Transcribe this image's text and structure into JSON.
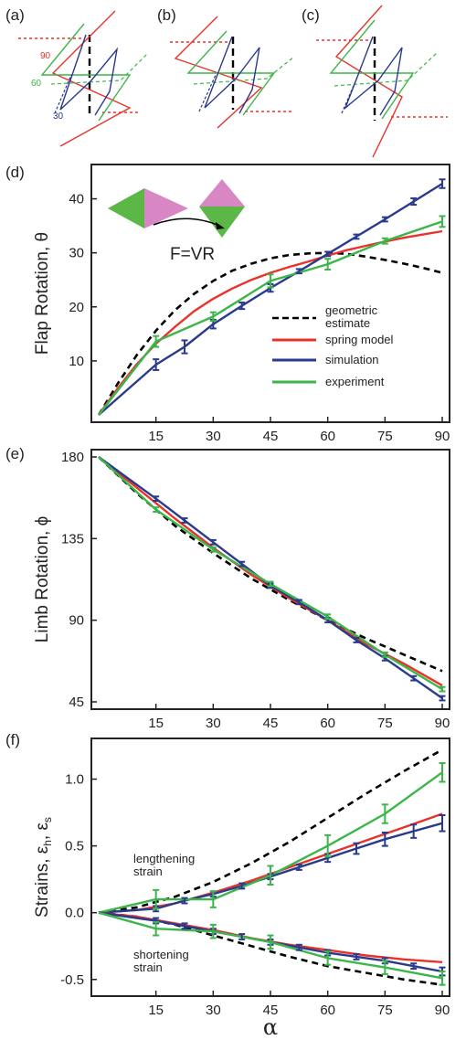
{
  "colors": {
    "geometric": "#000000",
    "spring": "#e8322a",
    "simulation": "#2a3a8c",
    "experiment": "#3cb54a",
    "pink": "#d987c4",
    "green": "#5cb846"
  },
  "panels_top": [
    {
      "label": "(a)",
      "angle_labels": [
        "90",
        "60",
        "30"
      ]
    },
    {
      "label": "(b)"
    },
    {
      "label": "(c)"
    }
  ],
  "chart_data": [
    {
      "type": "line",
      "panel": "(d)",
      "ylabel": "Flap Rotation, θ",
      "xlabel": "",
      "xlim": [
        0,
        90
      ],
      "ylim": [
        0,
        45
      ],
      "xticks": [
        15,
        30,
        45,
        60,
        75,
        90
      ],
      "yticks": [
        10,
        20,
        30,
        40
      ],
      "legend_position": "right",
      "inset_equation": "F=VR",
      "series": [
        {
          "name": "geometric\nestimate",
          "name_lines": [
            "geometric",
            "estimate"
          ],
          "style": "dashed",
          "color": "#000000",
          "x": [
            0,
            5,
            10,
            15,
            20,
            25,
            30,
            35,
            40,
            45,
            50,
            55,
            60,
            65,
            70,
            75,
            80,
            85,
            90
          ],
          "y": [
            0,
            5.8,
            11.1,
            15.6,
            19.4,
            22.4,
            24.8,
            26.7,
            28.0,
            29.0,
            29.6,
            29.9,
            30.0,
            29.8,
            29.3,
            28.7,
            28.0,
            27.2,
            26.3
          ]
        },
        {
          "name": "spring model",
          "style": "solid",
          "color": "#e8322a",
          "x": [
            0,
            5,
            10,
            15,
            20,
            25,
            30,
            35,
            40,
            45,
            50,
            55,
            60,
            65,
            70,
            75,
            80,
            85,
            90
          ],
          "y": [
            0,
            4.9,
            9.4,
            13.2,
            16.3,
            19.2,
            21.5,
            23.4,
            25.0,
            26.3,
            27.4,
            28.4,
            29.5,
            30.5,
            31.3,
            32.1,
            32.8,
            33.4,
            34.0
          ]
        },
        {
          "name": "simulation",
          "style": "solid",
          "color": "#2a3a8c",
          "x": [
            0,
            15,
            22.5,
            30,
            37.5,
            45,
            52.5,
            60,
            67.5,
            75,
            82.5,
            90
          ],
          "y": [
            0,
            9.3,
            12.6,
            16.8,
            20.2,
            23.5,
            26.6,
            29.8,
            33.0,
            36.2,
            39.5,
            42.8
          ],
          "err": [
            0,
            1.0,
            1.2,
            0.8,
            0.6,
            0.7,
            0.4,
            0.4,
            0.4,
            0.4,
            0.6,
            0.8
          ]
        },
        {
          "name": "experiment",
          "style": "solid",
          "color": "#3cb54a",
          "x": [
            0,
            15,
            30,
            45,
            60,
            75,
            90
          ],
          "y": [
            0,
            13.6,
            18.2,
            24.8,
            27.9,
            32.2,
            35.8
          ],
          "err": [
            0,
            1.0,
            0.8,
            1.2,
            1.0,
            0.5,
            1.0
          ]
        }
      ]
    },
    {
      "type": "line",
      "panel": "(e)",
      "ylabel": "Limb Rotation, ϕ",
      "xlabel": "",
      "xlim": [
        0,
        90
      ],
      "ylim": [
        45,
        180
      ],
      "xticks": [
        15,
        30,
        45,
        60,
        75,
        90
      ],
      "yticks": [
        45,
        90,
        135,
        180
      ],
      "series": [
        {
          "name": "geometric estimate",
          "style": "dashed",
          "color": "#000000",
          "x": [
            0,
            10,
            20,
            30,
            40,
            50,
            60,
            70,
            80,
            90
          ],
          "y": [
            180,
            160,
            142,
            127,
            113,
            101,
            90,
            80,
            71,
            62
          ]
        },
        {
          "name": "spring model",
          "style": "solid",
          "color": "#e8322a",
          "x": [
            0,
            10,
            20,
            30,
            40,
            50,
            60,
            70,
            80,
            90
          ],
          "y": [
            180,
            163,
            146,
            130,
            115,
            102,
            90,
            77,
            66,
            54
          ]
        },
        {
          "name": "simulation",
          "style": "solid",
          "color": "#2a3a8c",
          "x": [
            0,
            15,
            22.5,
            30,
            37.5,
            45,
            52.5,
            60,
            67.5,
            75,
            82.5,
            90
          ],
          "y": [
            180,
            157,
            145,
            133,
            121,
            109,
            100,
            90,
            79,
            69,
            58,
            47
          ],
          "err": [
            0,
            1.2,
            1.2,
            1.2,
            1.2,
            1.2,
            1.2,
            1.2,
            1.2,
            1.2,
            1.2,
            1.2
          ]
        },
        {
          "name": "experiment",
          "style": "solid",
          "color": "#3cb54a",
          "x": [
            0,
            15,
            30,
            45,
            60,
            75,
            90
          ],
          "y": [
            180,
            151,
            129,
            110,
            92,
            71,
            52
          ],
          "err": [
            0,
            1.2,
            1.2,
            1.2,
            1.2,
            1.2,
            1.2
          ]
        }
      ]
    },
    {
      "type": "line",
      "panel": "(f)",
      "ylabel": "Strains, ε",
      "ylabel_subs": [
        "h",
        "s"
      ],
      "xlabel": "α",
      "xlim": [
        0,
        90
      ],
      "ylim": [
        -0.57,
        1.25
      ],
      "xticks": [
        15,
        30,
        45,
        60,
        75,
        90
      ],
      "yticks": [
        -0.5,
        0.0,
        0.5,
        1.0
      ],
      "ytick_labels": [
        "-0.5",
        "0.0",
        "0.5",
        "1.0"
      ],
      "annotations": [
        {
          "lines": [
            "lengthening",
            "strain"
          ],
          "x": 8,
          "y": 0.55
        },
        {
          "lines": [
            "shortening",
            "strain"
          ],
          "x": 8,
          "y": -0.18
        }
      ],
      "series": [
        {
          "name": "geometric estimate (lengthening)",
          "style": "dashed",
          "color": "#000000",
          "x": [
            0,
            10,
            20,
            30,
            40,
            50,
            60,
            70,
            80,
            90
          ],
          "y": [
            0,
            0.04,
            0.12,
            0.23,
            0.37,
            0.53,
            0.71,
            0.89,
            1.06,
            1.22
          ]
        },
        {
          "name": "spring model (lengthening)",
          "style": "solid",
          "color": "#e8322a",
          "x": [
            0,
            10,
            20,
            30,
            40,
            50,
            60,
            70,
            80,
            90
          ],
          "y": [
            0,
            0.02,
            0.07,
            0.15,
            0.24,
            0.34,
            0.44,
            0.54,
            0.64,
            0.74
          ]
        },
        {
          "name": "simulation (lengthening)",
          "style": "solid",
          "color": "#2a3a8c",
          "x": [
            0,
            15,
            22.5,
            30,
            37.5,
            45,
            52.5,
            60,
            67.5,
            75,
            82.5,
            90
          ],
          "y": [
            0,
            0.03,
            0.09,
            0.14,
            0.2,
            0.27,
            0.34,
            0.41,
            0.48,
            0.55,
            0.61,
            0.67
          ],
          "err": [
            0,
            0.02,
            0.02,
            0.02,
            0.02,
            0.02,
            0.02,
            0.03,
            0.04,
            0.05,
            0.05,
            0.06
          ]
        },
        {
          "name": "experiment (lengthening)",
          "style": "solid",
          "color": "#3cb54a",
          "x": [
            0,
            15,
            30,
            45,
            60,
            75,
            90
          ],
          "y": [
            0,
            0.1,
            0.1,
            0.28,
            0.5,
            0.74,
            1.05
          ],
          "err": [
            0,
            0.07,
            0.06,
            0.07,
            0.08,
            0.07,
            0.07
          ]
        },
        {
          "name": "geometric estimate (shortening)",
          "style": "dashed",
          "color": "#000000",
          "x": [
            0,
            10,
            20,
            30,
            40,
            50,
            60,
            70,
            80,
            90
          ],
          "y": [
            0,
            -0.03,
            -0.09,
            -0.17,
            -0.25,
            -0.33,
            -0.4,
            -0.45,
            -0.5,
            -0.54
          ]
        },
        {
          "name": "spring model (shortening)",
          "style": "solid",
          "color": "#e8322a",
          "x": [
            0,
            10,
            20,
            30,
            40,
            50,
            60,
            70,
            80,
            90
          ],
          "y": [
            0,
            -0.03,
            -0.08,
            -0.13,
            -0.19,
            -0.24,
            -0.28,
            -0.32,
            -0.35,
            -0.37
          ]
        },
        {
          "name": "simulation (shortening)",
          "style": "solid",
          "color": "#2a3a8c",
          "x": [
            0,
            15,
            22.5,
            30,
            37.5,
            45,
            52.5,
            60,
            67.5,
            75,
            82.5,
            90
          ],
          "y": [
            0,
            -0.06,
            -0.1,
            -0.14,
            -0.18,
            -0.22,
            -0.26,
            -0.3,
            -0.33,
            -0.36,
            -0.4,
            -0.44
          ],
          "err": [
            0,
            0.02,
            0.02,
            0.02,
            0.02,
            0.02,
            0.02,
            0.02,
            0.02,
            0.02,
            0.02,
            0.03
          ]
        },
        {
          "name": "experiment (shortening)",
          "style": "solid",
          "color": "#3cb54a",
          "x": [
            0,
            15,
            30,
            45,
            60,
            75,
            90
          ],
          "y": [
            0,
            -0.12,
            -0.14,
            -0.22,
            -0.34,
            -0.41,
            -0.49
          ],
          "err": [
            0,
            0.05,
            0.05,
            0.05,
            0.05,
            0.05,
            0.05
          ]
        }
      ]
    }
  ]
}
